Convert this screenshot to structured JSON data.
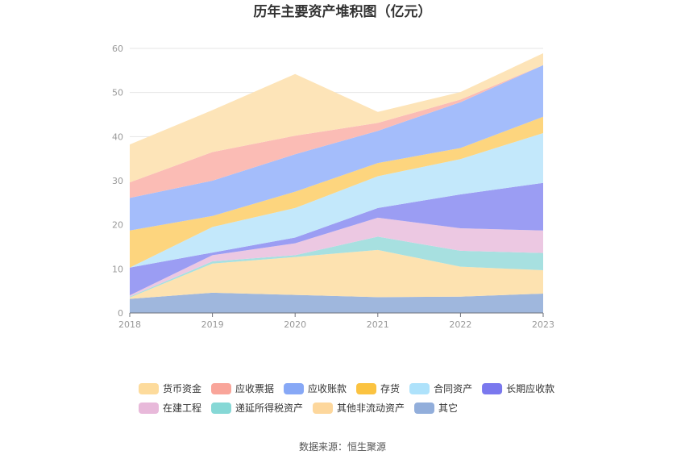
{
  "chart_data": {
    "type": "area",
    "stacked": true,
    "title": "历年主要资产堆积图（亿元）",
    "source": "数据来源：恒生聚源",
    "x": [
      "2018",
      "2019",
      "2020",
      "2021",
      "2022",
      "2023"
    ],
    "ylim": [
      0,
      60
    ],
    "yticks": [
      0,
      10,
      20,
      30,
      40,
      50,
      60
    ],
    "grid": true,
    "legend_position": "bottom",
    "series": [
      {
        "name": "其它",
        "color": "#9fb7dd",
        "values": [
          3.2,
          4.6,
          4.1,
          3.6,
          3.7,
          4.4
        ]
      },
      {
        "name": "其他非流动资产",
        "color": "#fde2b0",
        "values": [
          0.3,
          6.6,
          8.6,
          10.7,
          6.8,
          5.3
        ]
      },
      {
        "name": "递延所得税资产",
        "color": "#a7e0e0",
        "values": [
          0.2,
          0.5,
          0.4,
          3.0,
          3.6,
          3.9
        ]
      },
      {
        "name": "在建工程",
        "color": "#ecc8e2",
        "values": [
          0.3,
          1.4,
          2.7,
          4.3,
          5.1,
          5.1
        ]
      },
      {
        "name": "长期应收款",
        "color": "#9b9df3",
        "values": [
          6.3,
          0.6,
          1.3,
          2.2,
          7.7,
          10.8
        ]
      },
      {
        "name": "合同资产",
        "color": "#c3e8fb",
        "values": [
          0.0,
          5.8,
          6.7,
          7.2,
          8.0,
          11.3
        ]
      },
      {
        "name": "存货",
        "color": "#fdd57e",
        "values": [
          8.4,
          2.5,
          3.7,
          3.0,
          2.5,
          3.7
        ]
      },
      {
        "name": "应收账款",
        "color": "#a4bdfb",
        "values": [
          7.4,
          8.0,
          8.5,
          7.3,
          10.4,
          11.7
        ]
      },
      {
        "name": "应收票据",
        "color": "#fbbcb5",
        "values": [
          3.5,
          6.5,
          4.2,
          1.8,
          0.6,
          0.0
        ]
      },
      {
        "name": "货币资金",
        "color": "#fde4b8",
        "values": [
          8.6,
          9.5,
          14.0,
          2.5,
          1.7,
          2.7
        ]
      }
    ],
    "legend": [
      {
        "name": "货币资金",
        "color": "#fddb9c"
      },
      {
        "name": "应收票据",
        "color": "#f9a59a"
      },
      {
        "name": "应收账款",
        "color": "#87a8f6"
      },
      {
        "name": "存货",
        "color": "#fbc341"
      },
      {
        "name": "合同资产",
        "color": "#aee2fb"
      },
      {
        "name": "长期应收款",
        "color": "#7a78ee"
      },
      {
        "name": "在建工程",
        "color": "#e8b9da"
      },
      {
        "name": "递延所得税资产",
        "color": "#86d8d6"
      },
      {
        "name": "其他非流动资产",
        "color": "#fdd79c"
      },
      {
        "name": "其它",
        "color": "#92aedb"
      }
    ]
  }
}
